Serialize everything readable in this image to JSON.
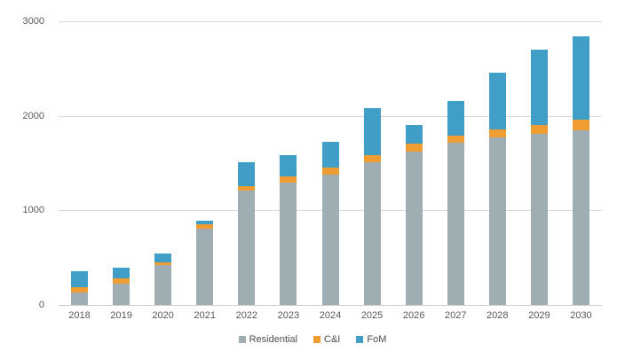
{
  "chart_data": {
    "type": "bar",
    "stacked": true,
    "title": "",
    "xlabel": "",
    "ylabel": "",
    "ylim": [
      0,
      3000
    ],
    "y_ticks": [
      0,
      1000,
      2000,
      3000
    ],
    "y_tick_labels": [
      "0",
      "1000",
      "2000",
      "3000"
    ],
    "grid": true,
    "legend_position": "bottom-center",
    "categories": [
      "2018",
      "2019",
      "2020",
      "2021",
      "2022",
      "2023",
      "2024",
      "2025",
      "2026",
      "2027",
      "2028",
      "2029",
      "2030"
    ],
    "series": [
      {
        "name": "Residential",
        "color": "#9FAEB3",
        "values": [
          135,
          225,
          420,
          805,
          1205,
          1290,
          1380,
          1505,
          1625,
          1720,
          1775,
          1805,
          1845
        ]
      },
      {
        "name": "C&I",
        "color": "#EF9D32",
        "values": [
          55,
          55,
          30,
          45,
          55,
          70,
          75,
          75,
          80,
          75,
          85,
          95,
          110
        ]
      },
      {
        "name": "FoM",
        "color": "#419FC7",
        "values": [
          165,
          110,
          90,
          40,
          245,
          225,
          270,
          505,
          200,
          365,
          600,
          800,
          890
        ]
      }
    ],
    "totals": [
      355,
      390,
      540,
      890,
      1505,
      1585,
      1725,
      2085,
      1905,
      2160,
      2460,
      2700,
      2845
    ],
    "colors": {
      "gridline": "#D9D9D9",
      "axis_line": "#C8CDCF",
      "tick_label": "#595959",
      "legend_label": "#4D4D4D",
      "background": "#FFFFFF"
    }
  }
}
